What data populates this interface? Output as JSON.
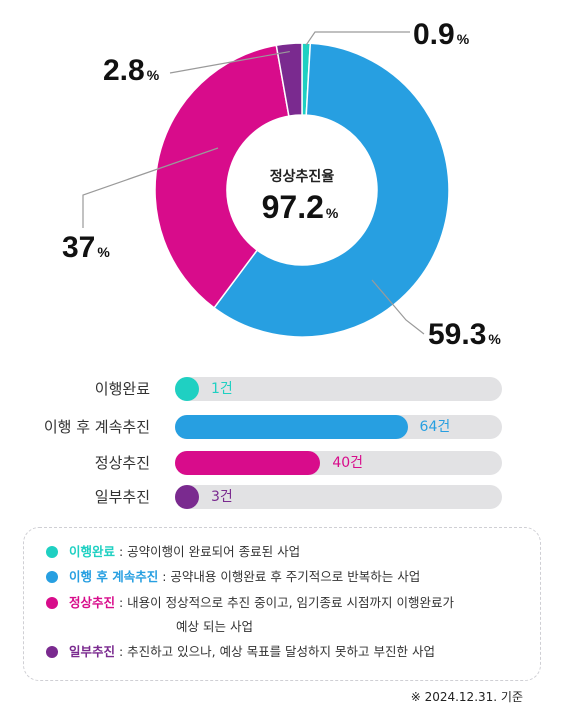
{
  "chart_data": {
    "type": "pie",
    "categories": [
      "이행완료",
      "이행 후 계속추진",
      "정상추진",
      "일부추진"
    ],
    "values": [
      0.9,
      59.3,
      37,
      2.8
    ],
    "value_labels": [
      "0.9",
      "59.3",
      "37",
      "2.8"
    ],
    "unit": "%",
    "colors": [
      "#1fd0c2",
      "#279fe1",
      "#d80c8b",
      "#7a2a8f"
    ],
    "center_title": "정상추진율",
    "center_value": "97.2",
    "counts": [
      1,
      64,
      40,
      3
    ],
    "count_unit": "건"
  },
  "bar_chart": {
    "type": "bar",
    "categories": [
      "이행완료",
      "이행 후 계속추진",
      "정상추진",
      "일부추진"
    ],
    "values": [
      1,
      64,
      40,
      3
    ],
    "value_labels": [
      "1건",
      "64건",
      "40건",
      "3건"
    ],
    "xlim": [
      0,
      90
    ]
  },
  "legend": [
    {
      "term": "이행완료",
      "desc": " : 공약이행이 완료되어 종료된 사업",
      "cont": ""
    },
    {
      "term": "이행 후 계속추진",
      "desc": " : 공약내용 이행완료 후 주기적으로 반복하는 사업",
      "cont": ""
    },
    {
      "term": "정상추진",
      "desc": " : 내용이 정상적으로 추진 중이고, 임기종료 시점까지 이행완료가",
      "cont": "예상 되는 사업"
    },
    {
      "term": "일부추진",
      "desc": " : 추진하고 있으나, 예상 목표를 달성하지 못하고 부진한 사업",
      "cont": ""
    }
  ],
  "footnote": "※ 2024.12.31. 기준"
}
